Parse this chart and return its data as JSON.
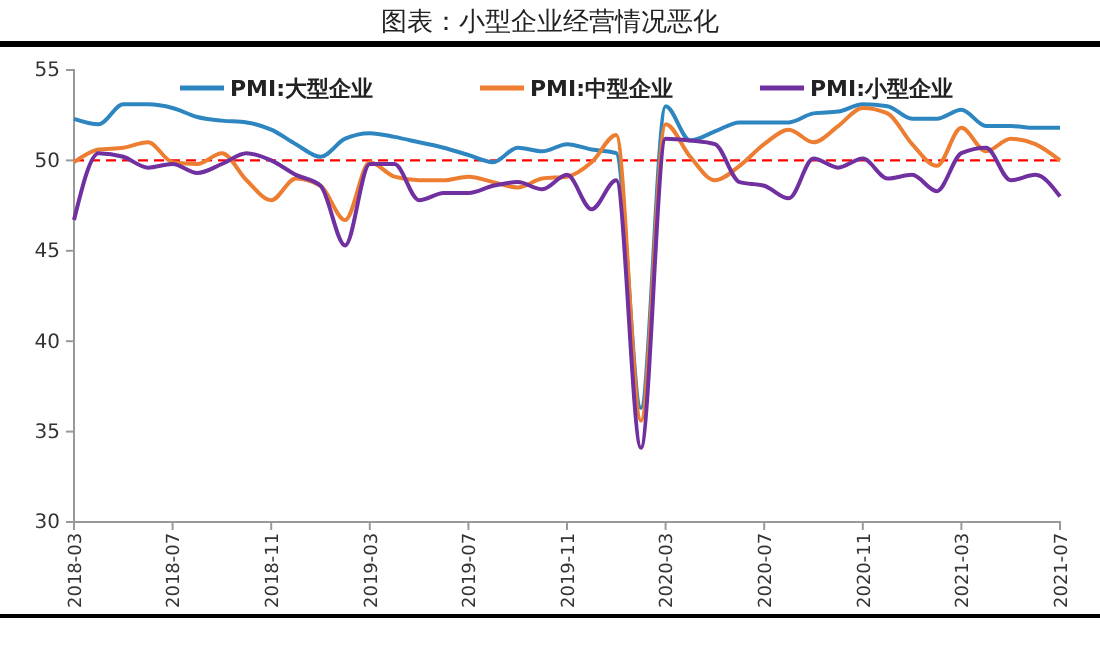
{
  "chart_data": {
    "type": "line",
    "title": "图表：小型企业经营情况恶化",
    "categories": [
      "2018-03",
      null,
      null,
      null,
      "2018-07",
      null,
      null,
      null,
      "2018-11",
      null,
      null,
      null,
      "2019-03",
      null,
      null,
      null,
      "2019-07",
      null,
      null,
      null,
      "2019-11",
      null,
      null,
      null,
      "2020-03",
      null,
      null,
      null,
      "2020-07",
      null,
      null,
      null,
      "2020-11",
      null,
      null,
      null,
      "2021-03",
      null,
      null,
      null,
      "2021-07"
    ],
    "series": [
      {
        "name": "PMI:大型企业",
        "color": "#2e86c1",
        "values": [
          52.3,
          52.0,
          53.1,
          53.1,
          52.9,
          52.4,
          52.2,
          52.1,
          51.7,
          50.9,
          50.2,
          51.2,
          51.5,
          51.3,
          51.0,
          50.7,
          50.3,
          49.9,
          50.7,
          50.5,
          50.9,
          50.6,
          50.4,
          36.3,
          53.0,
          51.1,
          51.6,
          52.1,
          52.1,
          52.1,
          52.6,
          52.7,
          53.1,
          53.0,
          52.3,
          52.3,
          52.8,
          51.9,
          51.9,
          51.8,
          51.8
        ]
      },
      {
        "name": "PMI:中型企业",
        "color": "#ed7d31",
        "values": [
          49.9,
          50.6,
          50.7,
          51.0,
          49.9,
          49.8,
          50.4,
          48.9,
          47.8,
          49.0,
          48.6,
          46.7,
          49.9,
          49.1,
          48.9,
          48.9,
          49.1,
          48.8,
          48.5,
          49.0,
          49.1,
          49.9,
          51.4,
          35.6,
          52.0,
          50.2,
          48.9,
          49.7,
          50.9,
          51.7,
          51.0,
          51.9,
          52.9,
          52.6,
          50.9,
          49.7,
          51.8,
          50.5,
          51.2,
          50.9,
          50.0
        ]
      },
      {
        "name": "PMI:小型企业",
        "color": "#7030a0",
        "values": [
          46.7,
          50.4,
          50.2,
          49.6,
          49.8,
          49.3,
          49.8,
          50.4,
          50.0,
          49.2,
          48.6,
          45.3,
          49.8,
          49.8,
          47.8,
          48.2,
          48.2,
          48.6,
          48.8,
          48.4,
          49.2,
          47.3,
          48.9,
          34.1,
          51.2,
          51.1,
          50.9,
          48.8,
          48.6,
          47.9,
          50.1,
          49.6,
          50.1,
          49.0,
          49.2,
          48.3,
          50.4,
          50.7,
          48.9,
          49.2,
          48.0
        ]
      }
    ],
    "ylim": [
      30,
      55
    ],
    "yticks": [
      30,
      35,
      40,
      45,
      50,
      55
    ],
    "ref_lines": [
      {
        "axis": "y",
        "value": 50,
        "color": "#ff0000",
        "line_style": "dashed"
      }
    ],
    "legend": "top",
    "grid": false,
    "marker": "none",
    "line_style": "solid"
  }
}
